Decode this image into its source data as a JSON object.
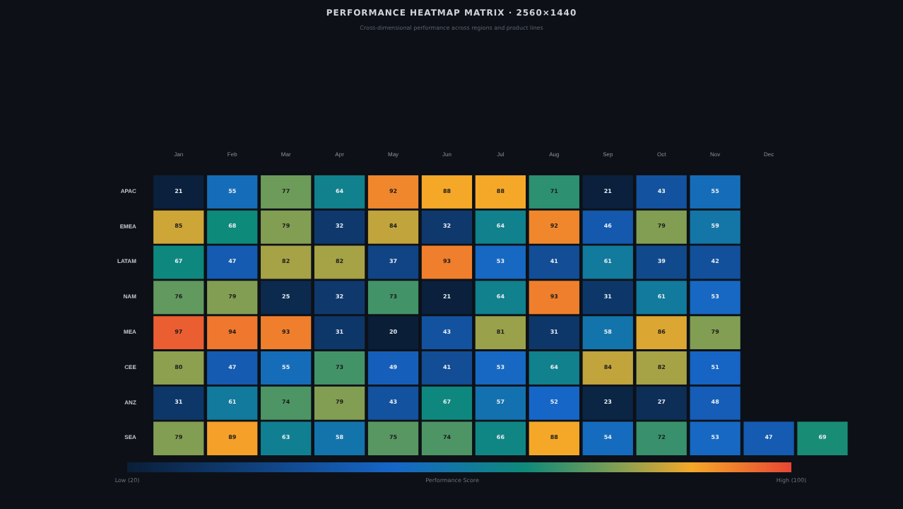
{
  "chart_data": {
    "type": "heatmap",
    "title": "PERFORMANCE HEATMAP MATRIX  ·  2560×1440",
    "subtitle": "Cross-dimensional performance across regions and product lines",
    "clabel": "Performance Score",
    "categories": [
      "Jan",
      "Feb",
      "Mar",
      "Apr",
      "May",
      "Jun",
      "Jul",
      "Aug",
      "Sep",
      "Oct",
      "Nov",
      "Dec",
      null
    ],
    "y_categories": [
      "APAC",
      "EMEA",
      "LATAM",
      "NAM",
      "MEA",
      "CEE",
      "ANZ",
      "SEA"
    ],
    "cells": [
      [
        21,
        55,
        77,
        64,
        92,
        88,
        88,
        71,
        21,
        43,
        55,
        null,
        null
      ],
      [
        85,
        68,
        79,
        32,
        84,
        32,
        64,
        92,
        46,
        79,
        59,
        null,
        null
      ],
      [
        67,
        47,
        82,
        82,
        37,
        93,
        53,
        41,
        61,
        39,
        42,
        null,
        null
      ],
      [
        76,
        79,
        25,
        32,
        73,
        21,
        64,
        93,
        31,
        61,
        53,
        null,
        null
      ],
      [
        97,
        94,
        93,
        31,
        20,
        43,
        81,
        31,
        58,
        86,
        79,
        null,
        null
      ],
      [
        80,
        47,
        55,
        73,
        49,
        41,
        53,
        64,
        84,
        82,
        51,
        null,
        null
      ],
      [
        31,
        61,
        74,
        79,
        43,
        67,
        57,
        52,
        23,
        27,
        48,
        null,
        null
      ],
      [
        79,
        89,
        63,
        58,
        75,
        74,
        66,
        88,
        54,
        72,
        53,
        47,
        69
      ]
    ],
    "clim": [
      20,
      100
    ],
    "cticks": [
      {
        "value": 20,
        "label": "Low (20)"
      },
      {
        "value": 100,
        "label": "High (100)"
      }
    ],
    "data_labels": true
  }
}
